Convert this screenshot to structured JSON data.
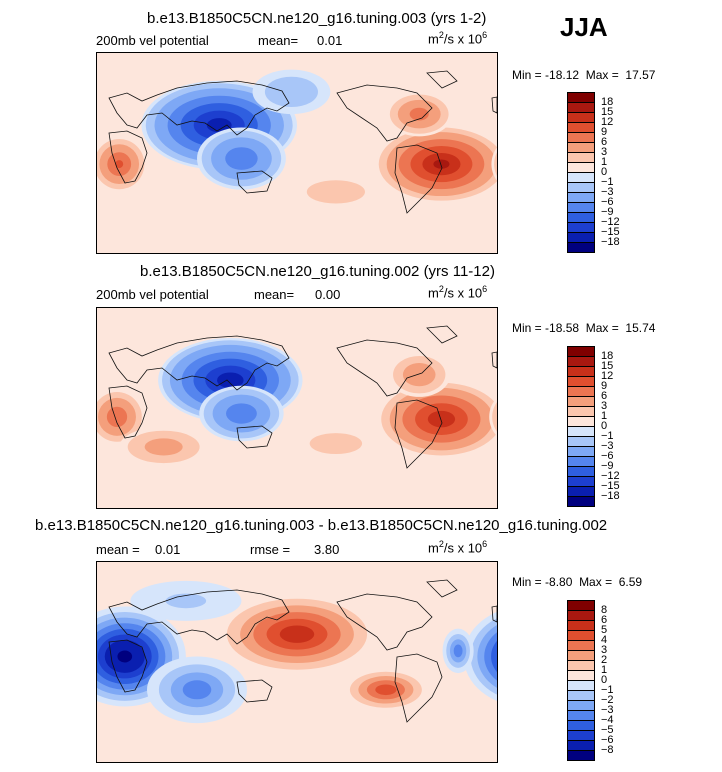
{
  "season": "JJA",
  "units_prefix": "m",
  "units_sup1": "2",
  "units_mid": "/s x 10",
  "units_sup2": "6",
  "colors": [
    "#00007f",
    "#0a1fb0",
    "#1d3fcf",
    "#2f5fe0",
    "#5585ee",
    "#7ea8f5",
    "#a8c6f8",
    "#d6e5fb",
    "#fde6dc",
    "#fbc6ae",
    "#f49f7c",
    "#ec7552",
    "#e04f2f",
    "#c8301a",
    "#a81810",
    "#7f0000"
  ],
  "panels": [
    {
      "title": "b.e13.B1850C5CN.ne120_g16.tuning.003 (yrs 1-2)",
      "left_label": "200mb vel potential",
      "mean_label": "mean=",
      "mean_value": "0.01",
      "min_label": "Min =",
      "min_value": "-18.12",
      "max_label": "Max =",
      "max_value": "17.57",
      "ticks": [
        "18",
        "15",
        "12",
        "9",
        "6",
        "3",
        "1",
        "0",
        "−1",
        "−3",
        "−6",
        "−9",
        "−12",
        "−15",
        "−18"
      ]
    },
    {
      "title": "b.e13.B1850C5CN.ne120_g16.tuning.002 (yrs 11-12)",
      "left_label": "200mb vel potential",
      "mean_label": "mean=",
      "mean_value": "0.00",
      "min_label": "Min =",
      "min_value": "-18.58",
      "max_label": "Max =",
      "max_value": "15.74",
      "ticks": [
        "18",
        "15",
        "12",
        "9",
        "6",
        "3",
        "1",
        "0",
        "−1",
        "−3",
        "−6",
        "−9",
        "−12",
        "−15",
        "−18"
      ]
    },
    {
      "title": "b.e13.B1850C5CN.ne120_g16.tuning.003 - b.e13.B1850C5CN.ne120_g16.tuning.002",
      "mean_label": "mean =",
      "mean_value": "0.01",
      "rmse_label": "rmse =",
      "rmse_value": "3.80",
      "min_label": "Min =",
      "min_value": "-8.80",
      "max_label": "Max =",
      "max_value": "6.59",
      "ticks": [
        "8",
        "6",
        "5",
        "4",
        "3",
        "2",
        "1",
        "0",
        "−1",
        "−2",
        "−3",
        "−4",
        "−5",
        "−6",
        "−8"
      ]
    }
  ],
  "chart_data": [
    {
      "type": "heatmap",
      "title": "b.e13.B1850C5CN.ne120_g16.tuning.003 (yrs 1-2)",
      "variable": "200mb vel potential",
      "units": "m^2/s x 10^6",
      "season": "JJA",
      "mean": 0.01,
      "min": -18.12,
      "max": 17.57,
      "contour_levels": [
        -18,
        -15,
        -12,
        -9,
        -6,
        -3,
        -1,
        0,
        1,
        3,
        6,
        9,
        12,
        15,
        18
      ],
      "centers": [
        {
          "lon": 110,
          "lat": 25,
          "value": -17,
          "rx": 70,
          "ry": 40
        },
        {
          "lon": 130,
          "lat": -5,
          "value": -9,
          "rx": 40,
          "ry": 28
        },
        {
          "lon": 310,
          "lat": -10,
          "value": 16,
          "rx": 60,
          "ry": 35
        },
        {
          "lon": 20,
          "lat": -10,
          "value": 10,
          "rx": 25,
          "ry": 25
        },
        {
          "lon": 290,
          "lat": 35,
          "value": 8,
          "rx": 30,
          "ry": 20
        },
        {
          "lon": 215,
          "lat": -35,
          "value": 2,
          "rx": 50,
          "ry": 20
        },
        {
          "lon": 175,
          "lat": 55,
          "value": -3,
          "rx": 35,
          "ry": 20
        }
      ]
    },
    {
      "type": "heatmap",
      "title": "b.e13.B1850C5CN.ne120_g16.tuning.002 (yrs 11-12)",
      "variable": "200mb vel potential",
      "units": "m^2/s x 10^6",
      "season": "JJA",
      "mean": 0.0,
      "min": -18.58,
      "max": 15.74,
      "contour_levels": [
        -18,
        -15,
        -12,
        -9,
        -6,
        -3,
        -1,
        0,
        1,
        3,
        6,
        9,
        12,
        15,
        18
      ],
      "centers": [
        {
          "lon": 120,
          "lat": 25,
          "value": -17.5,
          "rx": 65,
          "ry": 38
        },
        {
          "lon": 130,
          "lat": -5,
          "value": -9,
          "rx": 38,
          "ry": 25
        },
        {
          "lon": 310,
          "lat": -10,
          "value": 14.5,
          "rx": 58,
          "ry": 35
        },
        {
          "lon": 18,
          "lat": -8,
          "value": 9,
          "rx": 25,
          "ry": 25
        },
        {
          "lon": 60,
          "lat": -35,
          "value": 5,
          "rx": 40,
          "ry": 18
        },
        {
          "lon": 290,
          "lat": 30,
          "value": 6,
          "rx": 28,
          "ry": 20
        },
        {
          "lon": 215,
          "lat": -32,
          "value": 2,
          "rx": 45,
          "ry": 18
        }
      ]
    },
    {
      "type": "heatmap",
      "title": "b.e13.B1850C5CN.ne120_g16.tuning.003 - b.e13.B1850C5CN.ne120_g16.tuning.002",
      "units": "m^2/s x 10^6",
      "season": "JJA",
      "mean": 0.01,
      "rmse": 3.8,
      "min": -8.8,
      "max": 6.59,
      "contour_levels": [
        -8,
        -6,
        -5,
        -4,
        -3,
        -2,
        -1,
        0,
        1,
        2,
        3,
        4,
        5,
        6,
        8
      ],
      "centers": [
        {
          "lon": 25,
          "lat": 5,
          "value": -8.5,
          "rx": 55,
          "ry": 45
        },
        {
          "lon": 90,
          "lat": -25,
          "value": -4,
          "rx": 45,
          "ry": 30
        },
        {
          "lon": 180,
          "lat": 25,
          "value": 6,
          "rx": 75,
          "ry": 38
        },
        {
          "lon": 260,
          "lat": -25,
          "value": 5,
          "rx": 40,
          "ry": 20
        },
        {
          "lon": 325,
          "lat": 10,
          "value": -4,
          "rx": 14,
          "ry": 20
        },
        {
          "lon": 80,
          "lat": 55,
          "value": -1.5,
          "rx": 50,
          "ry": 18
        }
      ]
    }
  ]
}
